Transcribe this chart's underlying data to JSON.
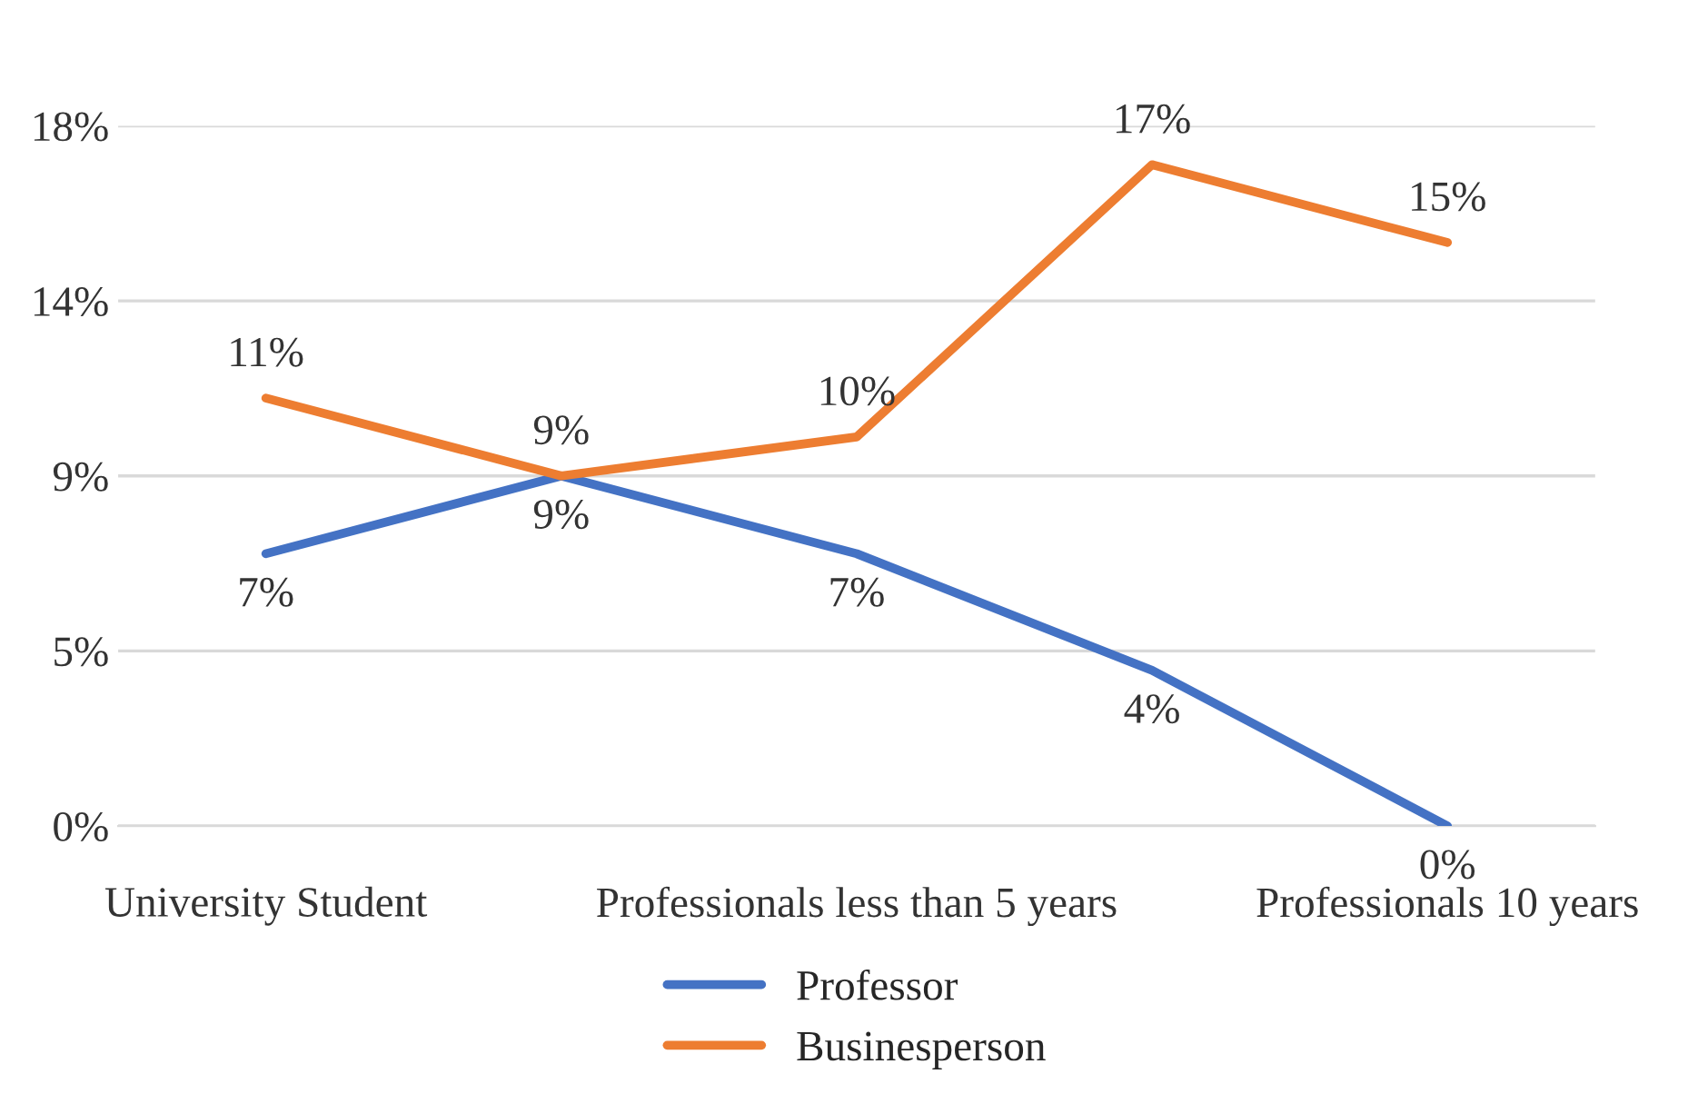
{
  "chart_data": {
    "type": "line",
    "categories": [
      "University Student",
      null,
      "Professionals less than 5 years",
      null,
      "Professionals 10 years"
    ],
    "series": [
      {
        "name": "Professor",
        "color": "#4472c4",
        "values": [
          7,
          9,
          7,
          4,
          0
        ],
        "value_labels": [
          "7%",
          "9%",
          "7%",
          "4%",
          "0%"
        ]
      },
      {
        "name": "Businesperson",
        "color": "#ed7d31",
        "values": [
          11,
          9,
          10,
          17,
          15
        ],
        "value_labels": [
          "11%",
          "9%",
          "10%",
          "17%",
          "15%"
        ]
      }
    ],
    "ylim": [
      0,
      18
    ],
    "yticks": [
      {
        "value": 0,
        "label": "0%"
      },
      {
        "value": 4.5,
        "label": "5%"
      },
      {
        "value": 9,
        "label": "9%"
      },
      {
        "value": 13.5,
        "label": "14%"
      },
      {
        "value": 18,
        "label": "18%"
      }
    ],
    "grid": "y",
    "legend": "bottom",
    "marker": "none",
    "line_style": "solid"
  }
}
